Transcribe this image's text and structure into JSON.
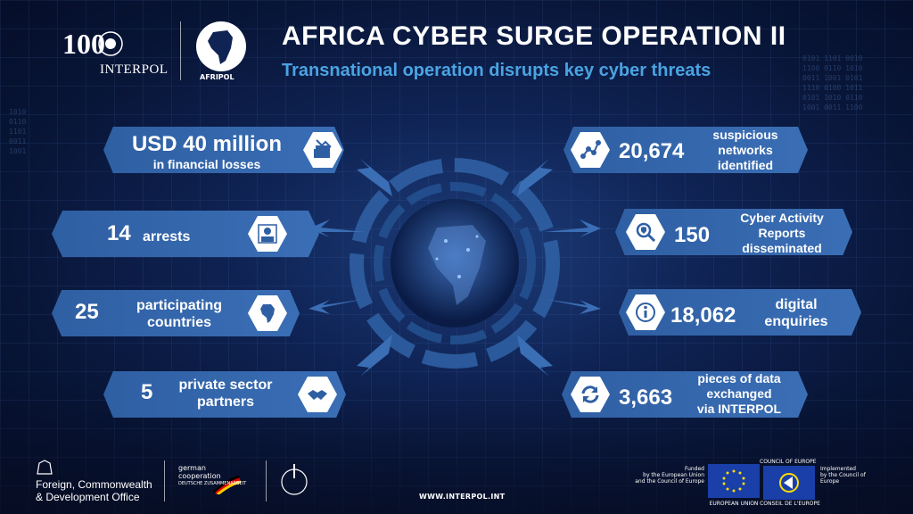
{
  "header": {
    "title": "AFRICA CYBER SURGE OPERATION II",
    "subtitle": "Transnational operation disrupts key cyber threats",
    "interpol_label": "INTERPOL",
    "afripol_label": "AFRIPOL",
    "centenary": "100"
  },
  "left_stats": [
    {
      "big": "USD 40 million",
      "small": "in financial losses",
      "icon": "money-stack-icon"
    },
    {
      "value": "14",
      "label": "arrests",
      "icon": "mugshot-icon"
    },
    {
      "value": "25",
      "label_line1": "participating",
      "label_line2": "countries",
      "icon": "africa-map-icon"
    },
    {
      "value": "5",
      "label_line1": "private sector",
      "label_line2": "partners",
      "icon": "handshake-icon"
    }
  ],
  "right_stats": [
    {
      "value": "20,674",
      "label_line1": "suspicious",
      "label_line2": "networks",
      "label_line3": "identified",
      "icon": "network-nodes-icon"
    },
    {
      "value": "150",
      "label_line1": "Cyber Activity",
      "label_line2": "Reports",
      "label_line3": "disseminated",
      "icon": "magnifier-shield-icon"
    },
    {
      "value": "18,062",
      "label_line1": "digital",
      "label_line2": "enquiries",
      "icon": "info-icon"
    },
    {
      "value": "3,663",
      "label_line1": "pieces of data",
      "label_line2": "exchanged",
      "label_line3": "via INTERPOL",
      "icon": "exchange-arrows-icon"
    }
  ],
  "footer": {
    "fco_line1": "Foreign, Commonwealth",
    "fco_line2": "& Development Office",
    "gc_line1": "german",
    "gc_line2": "cooperation",
    "gc_line3": "DEUTSCHE ZUSAMMENARBEIT",
    "url": "WWW.INTERPOL.INT",
    "funded_line1": "Funded",
    "funded_line2": "by the European Union",
    "funded_line3": "and the Council of Europe",
    "coe_top": "COUNCIL OF EUROPE",
    "implemented_line1": "Implemented",
    "implemented_line2": "by the Council of Europe",
    "eu_label": "EUROPEAN UNION",
    "coe_label": "CONSEIL DE L'EUROPE"
  },
  "colors": {
    "accent_blue": "#4aa3e2",
    "banner_blue": "#3a6eb5",
    "bg_navy": "#0f2354"
  }
}
